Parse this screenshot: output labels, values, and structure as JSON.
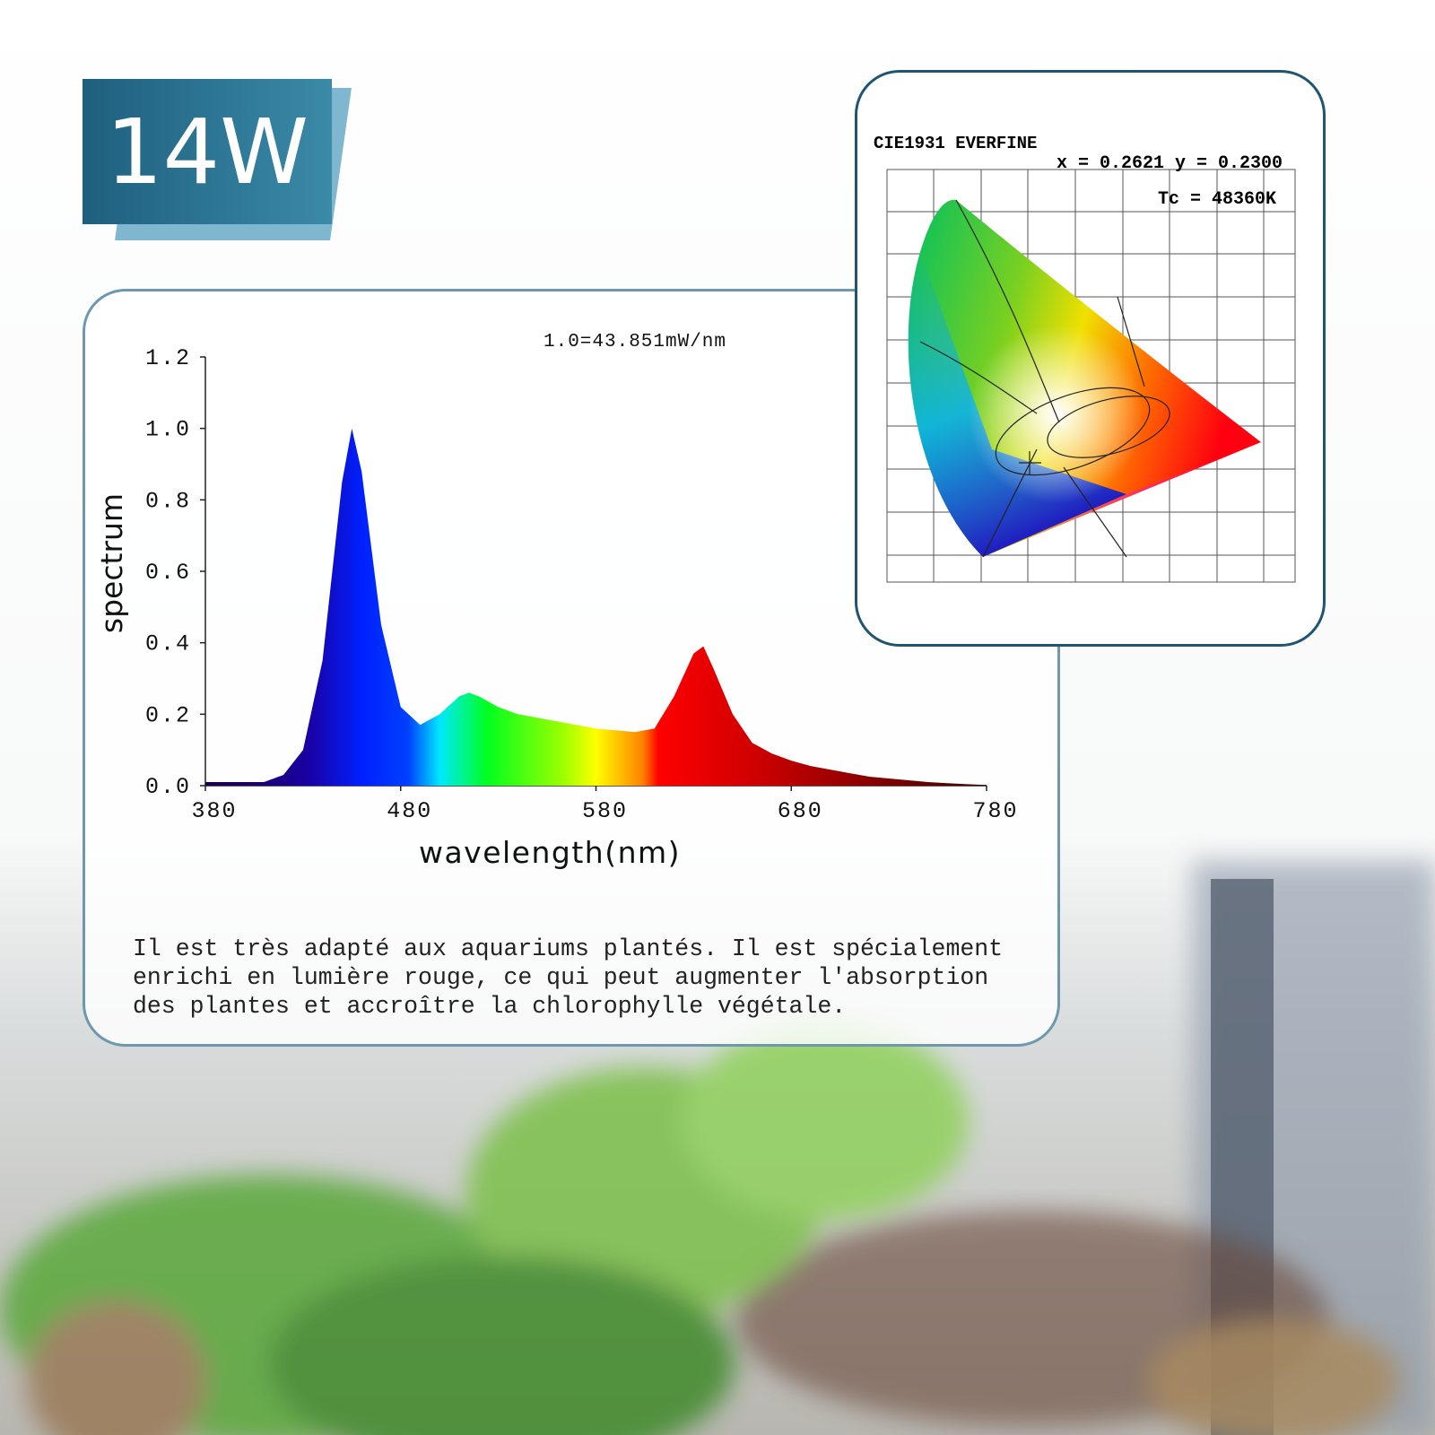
{
  "badge": "14W",
  "chart_data": {
    "type": "area",
    "annotation": "1.0=43.851mW/nm",
    "x_label": "wavelength(nm)",
    "y_label": "spectrum",
    "x": [
      380,
      390,
      400,
      410,
      420,
      430,
      440,
      450,
      455,
      460,
      470,
      480,
      490,
      500,
      510,
      515,
      520,
      530,
      540,
      550,
      560,
      570,
      580,
      590,
      600,
      610,
      620,
      630,
      635,
      640,
      650,
      660,
      670,
      680,
      690,
      700,
      710,
      720,
      730,
      740,
      750,
      760,
      770,
      780
    ],
    "values": [
      0.01,
      0.01,
      0.01,
      0.01,
      0.03,
      0.1,
      0.35,
      0.85,
      1.0,
      0.88,
      0.45,
      0.22,
      0.17,
      0.2,
      0.25,
      0.26,
      0.25,
      0.22,
      0.2,
      0.19,
      0.18,
      0.17,
      0.16,
      0.155,
      0.15,
      0.16,
      0.25,
      0.37,
      0.39,
      0.33,
      0.2,
      0.12,
      0.09,
      0.07,
      0.055,
      0.045,
      0.035,
      0.025,
      0.02,
      0.015,
      0.01,
      0.007,
      0.004,
      0.002
    ],
    "xlim": [
      380,
      780
    ],
    "ylim": [
      0,
      1.2
    ],
    "xticks": [
      380,
      480,
      580,
      680,
      780
    ],
    "yticks": [
      {
        "value": 0,
        "label": "0.0"
      },
      0.2,
      0.4,
      0.6,
      0.8,
      {
        "value": 1,
        "label": "1.0"
      },
      1.2
    ]
  },
  "description": [
    "Il est très adapté aux aquariums plantés. Il est spécialement",
    "enrichi en lumière rouge, ce qui peut augmenter l'absorption",
    "des plantes et accroître la chlorophylle végétale."
  ],
  "cie_diagram": {
    "title": "CIE1931 EVERFINE",
    "coordinates": "x = 0.2621 y = 0.2300",
    "color_temperature": "Tc = 48360K"
  }
}
